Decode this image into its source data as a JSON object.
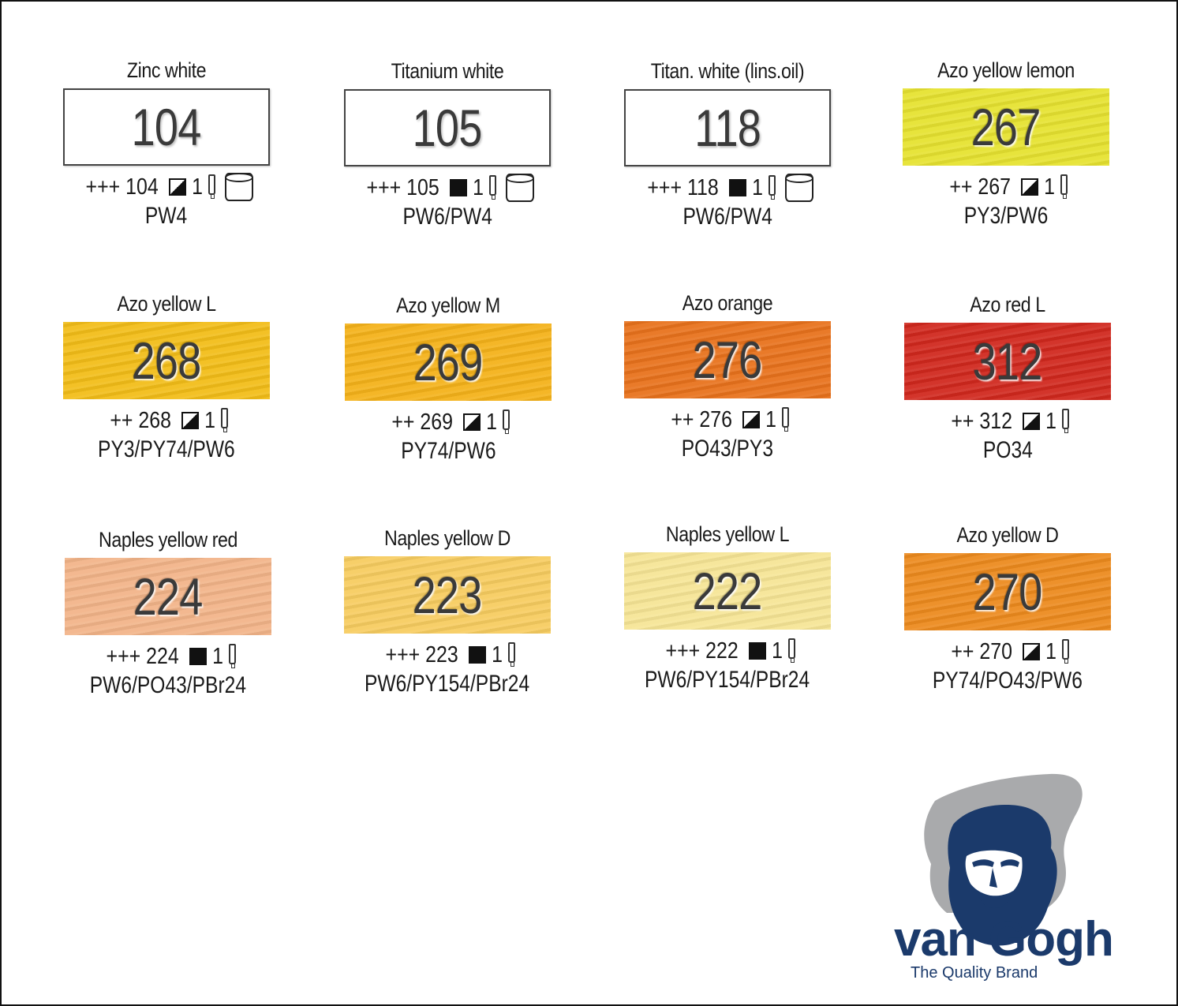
{
  "brand": {
    "name": "van Gogh",
    "tagline": "The Quality Brand",
    "color": "#1b3a6b"
  },
  "swatches": [
    {
      "name": "Zinc white",
      "number": "104",
      "color": "#ffffff",
      "white": true,
      "rating": "+++",
      "opacity": "semi",
      "tin": true,
      "pigments": "PW4"
    },
    {
      "name": "Titanium white",
      "number": "105",
      "color": "#ffffff",
      "white": true,
      "rating": "+++",
      "opacity": "opaque",
      "tin": true,
      "pigments": "PW6/PW4"
    },
    {
      "name": "Titan. white (lins.oil)",
      "number": "118",
      "color": "#ffffff",
      "white": true,
      "rating": "+++",
      "opacity": "opaque",
      "tin": true,
      "pigments": "PW6/PW4"
    },
    {
      "name": "Azo yellow lemon",
      "number": "267",
      "color": "#e6e230",
      "white": false,
      "rating": "++",
      "opacity": "semi",
      "tin": false,
      "pigments": "PY3/PW6"
    },
    {
      "name": "Azo yellow L",
      "number": "268",
      "color": "#f2bd18",
      "white": false,
      "rating": "++",
      "opacity": "semi",
      "tin": false,
      "pigments": "PY3/PY74/PW6"
    },
    {
      "name": "Azo yellow M",
      "number": "269",
      "color": "#f4b21a",
      "white": false,
      "rating": "++",
      "opacity": "semi",
      "tin": false,
      "pigments": "PY74/PW6"
    },
    {
      "name": "Azo orange",
      "number": "276",
      "color": "#e8721c",
      "white": false,
      "rating": "++",
      "opacity": "semi",
      "tin": false,
      "pigments": "PO43/PY3"
    },
    {
      "name": "Azo red L",
      "number": "312",
      "color": "#d0281e",
      "white": false,
      "rating": "++",
      "opacity": "semi",
      "tin": false,
      "pigments": "PO34"
    },
    {
      "name": "Naples yellow red",
      "number": "224",
      "color": "#f2b489",
      "white": false,
      "rating": "+++",
      "opacity": "opaque",
      "tin": false,
      "pigments": "PW6/PO43/PBr24"
    },
    {
      "name": "Naples yellow D",
      "number": "223",
      "color": "#f7cc60",
      "white": false,
      "rating": "+++",
      "opacity": "opaque",
      "tin": false,
      "pigments": "PW6/PY154/PBr24"
    },
    {
      "name": "Naples yellow L",
      "number": "222",
      "color": "#f6e596",
      "white": false,
      "rating": "+++",
      "opacity": "opaque",
      "tin": false,
      "pigments": "PW6/PY154/PBr24"
    },
    {
      "name": "Azo yellow D",
      "number": "270",
      "color": "#ec8a1e",
      "white": false,
      "rating": "++",
      "opacity": "semi",
      "tin": false,
      "pigments": "PY74/PO43/PW6"
    }
  ]
}
